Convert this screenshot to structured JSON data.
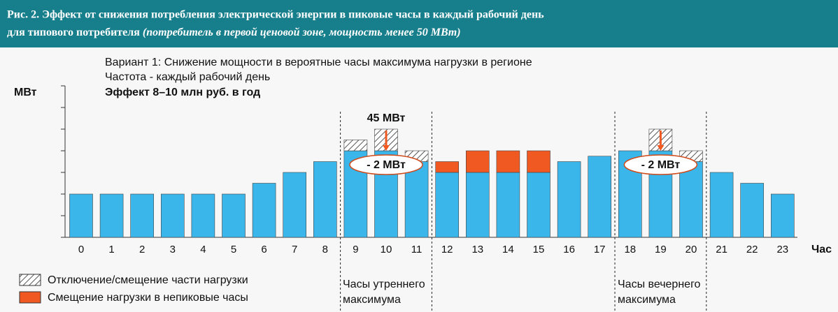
{
  "header": {
    "line1": "Рис. 2. Эффект от снижения потребления электрической энергии в пиковые часы в каждый рабочий день",
    "line2": "для типового потребителя",
    "line2_italic": "(потребитель в первой ценовой зоне, мощность менее 50 МВт)"
  },
  "chart_data": {
    "type": "bar",
    "stacked": true,
    "notes": [
      "Вариант 1: Снижение мощности в вероятные часы максимума нагрузки в регионе",
      "Частота - каждый рабочий день",
      "Эффект 8–10 млн руб. в год"
    ],
    "y_label": "МВт",
    "x_label": "Час",
    "categories": [
      "0",
      "1",
      "2",
      "3",
      "4",
      "5",
      "6",
      "7",
      "8",
      "9",
      "10",
      "11",
      "12",
      "13",
      "14",
      "15",
      "16",
      "17",
      "18",
      "19",
      "20",
      "21",
      "22",
      "23"
    ],
    "series": [
      {
        "color": "#3bb6ea",
        "values": [
          2,
          2,
          2,
          2,
          2,
          2,
          2.5,
          3,
          3.5,
          4,
          4,
          3.5,
          3,
          3,
          3,
          3,
          3.5,
          3.75,
          4,
          4,
          3.5,
          3,
          2.5,
          2
        ]
      },
      {
        "name": "Смещение нагрузки в непиковые часы",
        "color": "#f05a22",
        "values": [
          null,
          null,
          null,
          null,
          null,
          null,
          null,
          null,
          null,
          null,
          null,
          null,
          0.5,
          1,
          1,
          1,
          null,
          null,
          null,
          null,
          null,
          null,
          null,
          null
        ]
      },
      {
        "name": "Отключение/смещение части нагрузки",
        "color": "hatch",
        "values": [
          null,
          null,
          null,
          null,
          null,
          null,
          null,
          null,
          null,
          0.5,
          1,
          0.5,
          null,
          null,
          null,
          null,
          null,
          null,
          null,
          1,
          0.5,
          null,
          null,
          null
        ]
      }
    ],
    "annotations": [
      "45 МВт",
      "- 2 МВт",
      "- 2 МВт"
    ],
    "periods": [
      [
        "Часы утреннего",
        "максимума"
      ],
      [
        "Часы вечернего",
        "максимума"
      ]
    ],
    "ylim": [
      0,
      7
    ],
    "yticks": [
      0,
      1,
      2,
      3,
      4,
      5,
      6,
      7
    ]
  }
}
